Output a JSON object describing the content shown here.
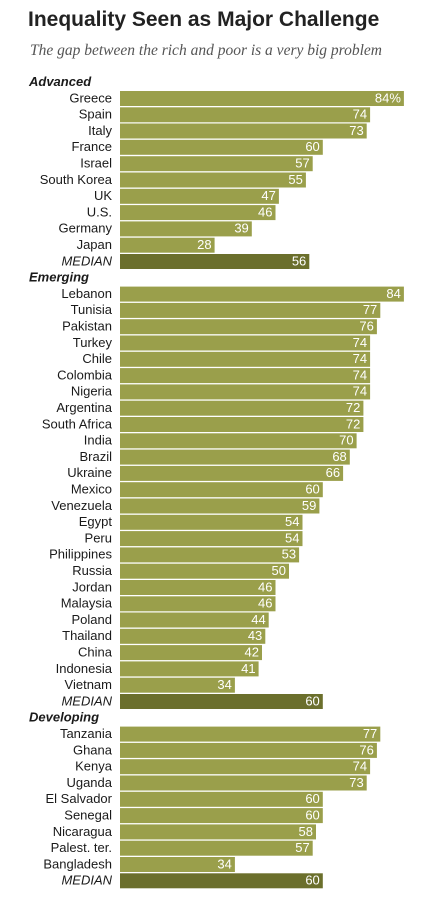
{
  "title": "Inequality Seen as Major Challenge",
  "subtitle": "The gap between the rich and poor is a very big problem",
  "colors": {
    "bar": "#9a9f4b",
    "median_bar": "#6b6f2c",
    "separator": "#ffffff"
  },
  "chart_data": {
    "type": "bar",
    "orientation": "horizontal",
    "title": "Inequality Seen as Major Challenge",
    "subtitle": "The gap between the rich and poor is a very big problem",
    "unit": "%",
    "xlim": [
      0,
      85
    ],
    "groups": [
      {
        "name": "Advanced",
        "rows": [
          {
            "label": "Greece",
            "value": 84,
            "display": "84%"
          },
          {
            "label": "Spain",
            "value": 74,
            "display": "74"
          },
          {
            "label": "Italy",
            "value": 73,
            "display": "73"
          },
          {
            "label": "France",
            "value": 60,
            "display": "60"
          },
          {
            "label": "Israel",
            "value": 57,
            "display": "57"
          },
          {
            "label": "South Korea",
            "value": 55,
            "display": "55"
          },
          {
            "label": "UK",
            "value": 47,
            "display": "47"
          },
          {
            "label": "U.S.",
            "value": 46,
            "display": "46"
          },
          {
            "label": "Germany",
            "value": 39,
            "display": "39"
          },
          {
            "label": "Japan",
            "value": 28,
            "display": "28"
          },
          {
            "label": "MEDIAN",
            "value": 56,
            "display": "56",
            "median": true
          }
        ]
      },
      {
        "name": "Emerging",
        "rows": [
          {
            "label": "Lebanon",
            "value": 84,
            "display": "84"
          },
          {
            "label": "Tunisia",
            "value": 77,
            "display": "77"
          },
          {
            "label": "Pakistan",
            "value": 76,
            "display": "76"
          },
          {
            "label": "Turkey",
            "value": 74,
            "display": "74"
          },
          {
            "label": "Chile",
            "value": 74,
            "display": "74"
          },
          {
            "label": "Colombia",
            "value": 74,
            "display": "74"
          },
          {
            "label": "Nigeria",
            "value": 74,
            "display": "74"
          },
          {
            "label": "Argentina",
            "value": 72,
            "display": "72"
          },
          {
            "label": "South Africa",
            "value": 72,
            "display": "72"
          },
          {
            "label": "India",
            "value": 70,
            "display": "70"
          },
          {
            "label": "Brazil",
            "value": 68,
            "display": "68"
          },
          {
            "label": "Ukraine",
            "value": 66,
            "display": "66"
          },
          {
            "label": "Mexico",
            "value": 60,
            "display": "60"
          },
          {
            "label": "Venezuela",
            "value": 59,
            "display": "59"
          },
          {
            "label": "Egypt",
            "value": 54,
            "display": "54"
          },
          {
            "label": "Peru",
            "value": 54,
            "display": "54"
          },
          {
            "label": "Philippines",
            "value": 53,
            "display": "53"
          },
          {
            "label": "Russia",
            "value": 50,
            "display": "50"
          },
          {
            "label": "Jordan",
            "value": 46,
            "display": "46"
          },
          {
            "label": "Malaysia",
            "value": 46,
            "display": "46"
          },
          {
            "label": "Poland",
            "value": 44,
            "display": "44"
          },
          {
            "label": "Thailand",
            "value": 43,
            "display": "43"
          },
          {
            "label": "China",
            "value": 42,
            "display": "42"
          },
          {
            "label": "Indonesia",
            "value": 41,
            "display": "41"
          },
          {
            "label": "Vietnam",
            "value": 34,
            "display": "34"
          },
          {
            "label": "MEDIAN",
            "value": 60,
            "display": "60",
            "median": true
          }
        ]
      },
      {
        "name": "Developing",
        "rows": [
          {
            "label": "Tanzania",
            "value": 77,
            "display": "77"
          },
          {
            "label": "Ghana",
            "value": 76,
            "display": "76"
          },
          {
            "label": "Kenya",
            "value": 74,
            "display": "74"
          },
          {
            "label": "Uganda",
            "value": 73,
            "display": "73"
          },
          {
            "label": "El Salvador",
            "value": 60,
            "display": "60"
          },
          {
            "label": "Senegal",
            "value": 60,
            "display": "60"
          },
          {
            "label": "Nicaragua",
            "value": 58,
            "display": "58"
          },
          {
            "label": "Palest. ter.",
            "value": 57,
            "display": "57"
          },
          {
            "label": "Bangladesh",
            "value": 34,
            "display": "34"
          },
          {
            "label": "MEDIAN",
            "value": 60,
            "display": "60",
            "median": true
          }
        ]
      }
    ]
  }
}
